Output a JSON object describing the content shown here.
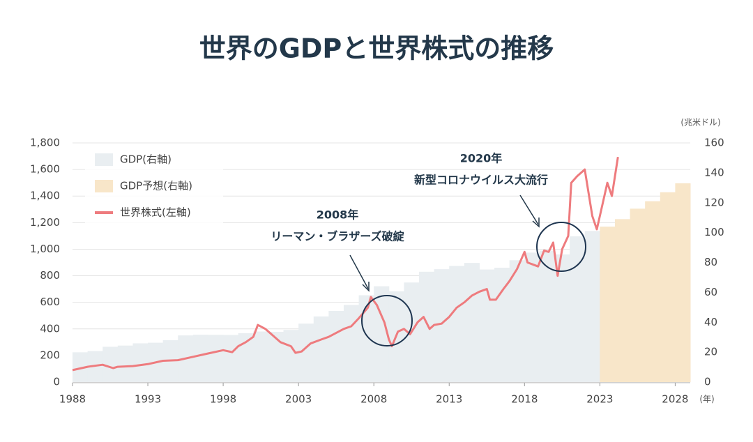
{
  "chart_data": {
    "type": "combo",
    "title": "世界のGDPと世界株式の推移",
    "y2_label": "(兆米ドル)",
    "x_label": "(年)",
    "xlim": [
      1988,
      2029
    ],
    "xticks": [
      1988,
      1993,
      1998,
      2003,
      2008,
      2013,
      2018,
      2023,
      2028
    ],
    "ylim": [
      0,
      1800
    ],
    "yticks": [
      0,
      200,
      400,
      600,
      800,
      {
        "value": 1000,
        "label": "1,000"
      },
      {
        "value": 1200,
        "label": "1,200"
      },
      {
        "value": 1400,
        "label": "1,400"
      },
      {
        "value": 1600,
        "label": "1,600"
      },
      {
        "value": 1800,
        "label": "1,800"
      }
    ],
    "y2lim": [
      0,
      160
    ],
    "y2ticks": [
      0,
      20,
      40,
      60,
      80,
      100,
      120,
      140,
      160
    ],
    "grid": true,
    "legend": "top-left",
    "series": [
      {
        "name": "GDP(右軸)",
        "type": "step",
        "axis": "y2",
        "color": "#e9eef1",
        "x": [
          1988,
          1989,
          1990,
          1991,
          1992,
          1993,
          1994,
          1995,
          1996,
          1997,
          1998,
          1999,
          2000,
          2001,
          2002,
          2003,
          2004,
          2005,
          2006,
          2007,
          2008,
          2009,
          2010,
          2011,
          2012,
          2013,
          2014,
          2015,
          2016,
          2017,
          2018,
          2019,
          2020,
          2021,
          2022
        ],
        "values": [
          19.9,
          20.7,
          23.6,
          24.4,
          25.9,
          26.3,
          28.0,
          31.2,
          31.7,
          31.6,
          31.5,
          32.7,
          33.8,
          33.6,
          34.9,
          39.1,
          43.9,
          47.6,
          51.6,
          58.1,
          64.1,
          60.7,
          66.6,
          73.8,
          75.5,
          77.7,
          79.7,
          75.3,
          76.5,
          81.5,
          86.6,
          87.9,
          85.4,
          97.5,
          101.1
        ]
      },
      {
        "name": "GDP予想(右軸)",
        "type": "step",
        "axis": "y2",
        "color": "#f8e6c9",
        "x": [
          2023,
          2024,
          2025,
          2026,
          2027,
          2028
        ],
        "values": [
          104,
          109,
          116,
          121,
          127,
          133
        ]
      },
      {
        "name": "世界株式(左軸)",
        "type": "line",
        "color": "#ee7b7e",
        "x": [
          1988,
          1989,
          1990,
          1990.7,
          1991,
          1992,
          1993,
          1994,
          1995,
          1996,
          1997,
          1998,
          1998.6,
          1999,
          1999.5,
          2000,
          2000.3,
          2000.8,
          2001.3,
          2001.8,
          2002.5,
          2002.8,
          2003.2,
          2003.8,
          2004.5,
          2005,
          2006,
          2006.5,
          2007,
          2007.6,
          2007.8,
          2008.2,
          2008.7,
          2009,
          2009.2,
          2009.6,
          2010,
          2010.4,
          2010.9,
          2011.3,
          2011.7,
          2012,
          2012.5,
          2013,
          2013.5,
          2014,
          2014.5,
          2015,
          2015.5,
          2015.7,
          2016.1,
          2016.6,
          2017,
          2017.5,
          2018,
          2018.2,
          2018.9,
          2019.3,
          2019.6,
          2019.9,
          2020.2,
          2020.5,
          2020.9,
          2021.1,
          2021.5,
          2022,
          2022.5,
          2022.8,
          2023.1,
          2023.5,
          2023.8,
          2024.2
        ],
        "values": [
          90,
          115,
          130,
          105,
          115,
          120,
          135,
          160,
          165,
          190,
          215,
          240,
          225,
          270,
          300,
          340,
          430,
          400,
          350,
          300,
          270,
          220,
          230,
          290,
          320,
          340,
          400,
          420,
          480,
          560,
          640,
          580,
          450,
          320,
          270,
          380,
          400,
          360,
          450,
          490,
          400,
          430,
          440,
          490,
          560,
          600,
          650,
          680,
          700,
          620,
          620,
          700,
          760,
          850,
          980,
          900,
          870,
          990,
          980,
          1050,
          800,
          1000,
          1100,
          1500,
          1550,
          1600,
          1250,
          1150,
          1300,
          1500,
          1400,
          1694
        ]
      }
    ],
    "annotations": [
      {
        "title": "2008年",
        "text": "リーマン・ブラザーズ破綻"
      },
      {
        "title": "2020年",
        "text": "新型コロナウイルス大流行"
      }
    ]
  }
}
